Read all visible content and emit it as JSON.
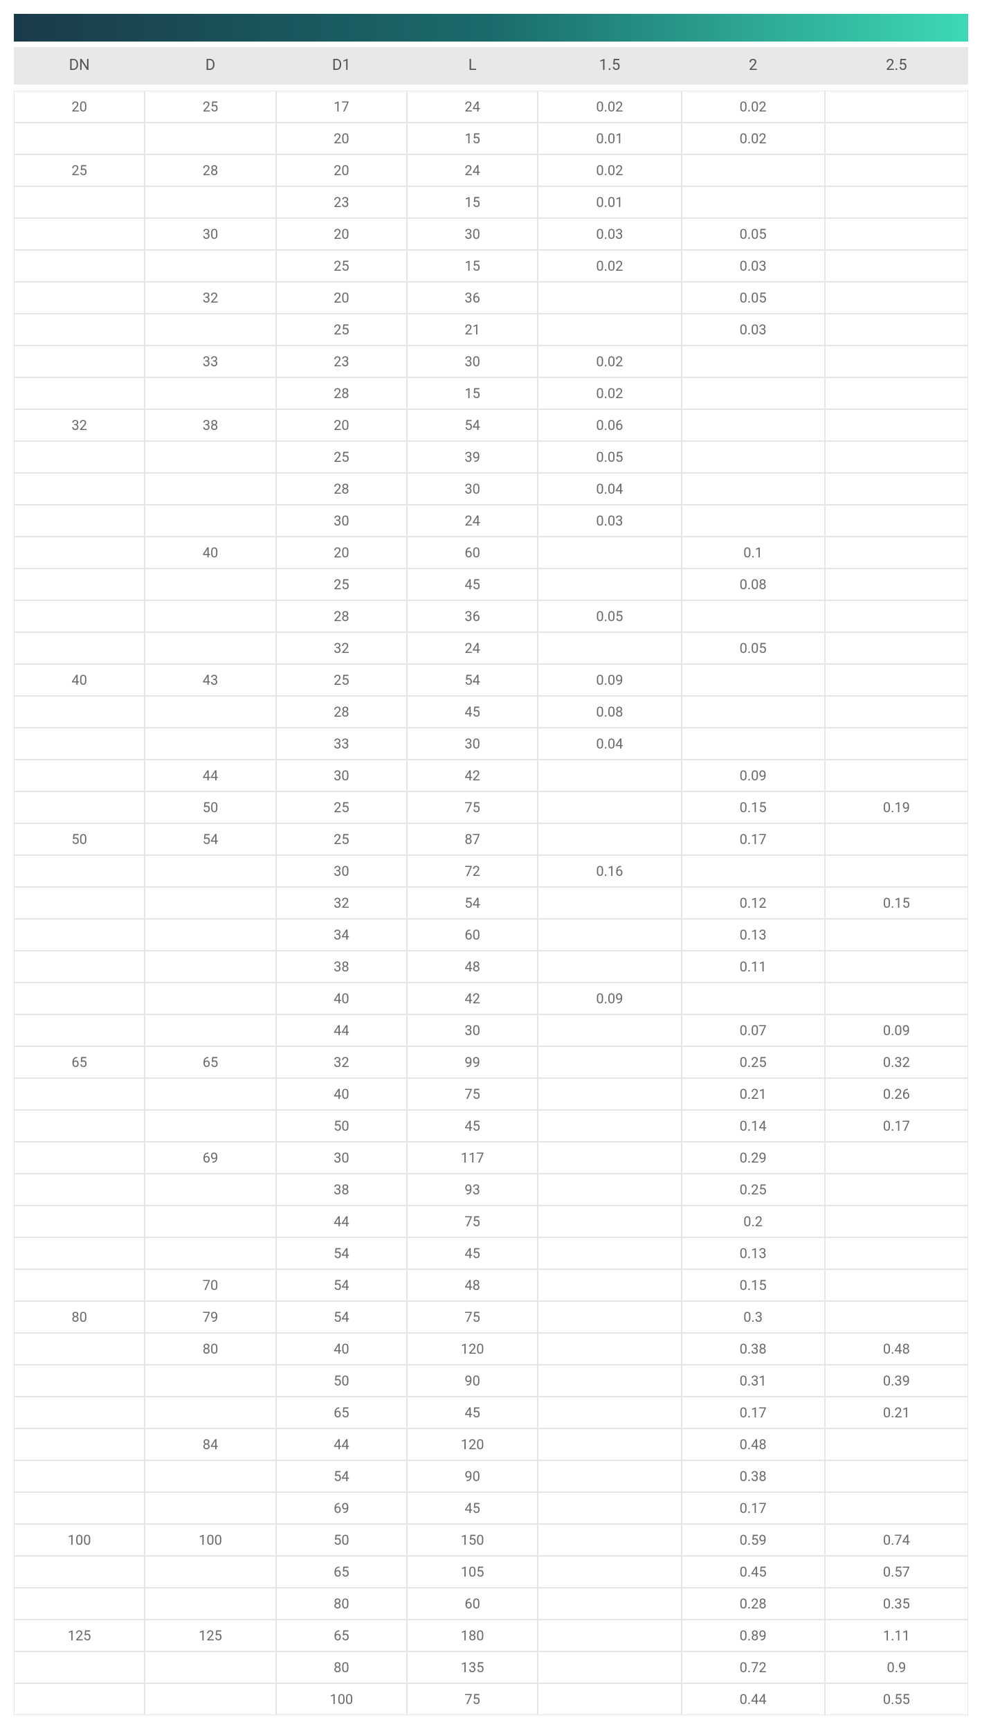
{
  "table": {
    "type": "table",
    "columns": [
      "DN",
      "D",
      "D1",
      "L",
      "1.5",
      "2",
      "2.5"
    ],
    "header_bg_color": "#e8e8e8",
    "header_text_color": "#555555",
    "cell_border_color": "#e5e5e5",
    "cell_text_color": "#6a6a6a",
    "header_fontsize": 22,
    "cell_fontsize": 20,
    "gradient_colors": [
      "#1a3a4a",
      "#1a6b6b",
      "#3dd9b5"
    ],
    "rows": [
      [
        "20",
        "25",
        "17",
        "24",
        "0.02",
        "0.02",
        ""
      ],
      [
        "",
        "",
        "20",
        "15",
        "0.01",
        "0.02",
        ""
      ],
      [
        "25",
        "28",
        "20",
        "24",
        "0.02",
        "",
        ""
      ],
      [
        "",
        "",
        "23",
        "15",
        "0.01",
        "",
        ""
      ],
      [
        "",
        "30",
        "20",
        "30",
        "0.03",
        "0.05",
        ""
      ],
      [
        "",
        "",
        "25",
        "15",
        "0.02",
        "0.03",
        ""
      ],
      [
        "",
        "32",
        "20",
        "36",
        "",
        "0.05",
        ""
      ],
      [
        "",
        "",
        "25",
        "21",
        "",
        "0.03",
        ""
      ],
      [
        "",
        "33",
        "23",
        "30",
        "0.02",
        "",
        ""
      ],
      [
        "",
        "",
        "28",
        "15",
        "0.02",
        "",
        ""
      ],
      [
        "32",
        "38",
        "20",
        "54",
        "0.06",
        "",
        ""
      ],
      [
        "",
        "",
        "25",
        "39",
        "0.05",
        "",
        ""
      ],
      [
        "",
        "",
        "28",
        "30",
        "0.04",
        "",
        ""
      ],
      [
        "",
        "",
        "30",
        "24",
        "0.03",
        "",
        ""
      ],
      [
        "",
        "40",
        "20",
        "60",
        "",
        "0.1",
        ""
      ],
      [
        "",
        "",
        "25",
        "45",
        "",
        "0.08",
        ""
      ],
      [
        "",
        "",
        "28",
        "36",
        "0.05",
        "",
        ""
      ],
      [
        "",
        "",
        "32",
        "24",
        "",
        "0.05",
        ""
      ],
      [
        "40",
        "43",
        "25",
        "54",
        "0.09",
        "",
        ""
      ],
      [
        "",
        "",
        "28",
        "45",
        "0.08",
        "",
        ""
      ],
      [
        "",
        "",
        "33",
        "30",
        "0.04",
        "",
        ""
      ],
      [
        "",
        "44",
        "30",
        "42",
        "",
        "0.09",
        ""
      ],
      [
        "",
        "50",
        "25",
        "75",
        "",
        "0.15",
        "0.19"
      ],
      [
        "50",
        "54",
        "25",
        "87",
        "",
        "0.17",
        ""
      ],
      [
        "",
        "",
        "30",
        "72",
        "0.16",
        "",
        ""
      ],
      [
        "",
        "",
        "32",
        "54",
        "",
        "0.12",
        "0.15"
      ],
      [
        "",
        "",
        "34",
        "60",
        "",
        "0.13",
        ""
      ],
      [
        "",
        "",
        "38",
        "48",
        "",
        "0.11",
        ""
      ],
      [
        "",
        "",
        "40",
        "42",
        "0.09",
        "",
        ""
      ],
      [
        "",
        "",
        "44",
        "30",
        "",
        "0.07",
        "0.09"
      ],
      [
        "65",
        "65",
        "32",
        "99",
        "",
        "0.25",
        "0.32"
      ],
      [
        "",
        "",
        "40",
        "75",
        "",
        "0.21",
        "0.26"
      ],
      [
        "",
        "",
        "50",
        "45",
        "",
        "0.14",
        "0.17"
      ],
      [
        "",
        "69",
        "30",
        "117",
        "",
        "0.29",
        ""
      ],
      [
        "",
        "",
        "38",
        "93",
        "",
        "0.25",
        ""
      ],
      [
        "",
        "",
        "44",
        "75",
        "",
        "0.2",
        ""
      ],
      [
        "",
        "",
        "54",
        "45",
        "",
        "0.13",
        ""
      ],
      [
        "",
        "70",
        "54",
        "48",
        "",
        "0.15",
        ""
      ],
      [
        "80",
        "79",
        "54",
        "75",
        "",
        "0.3",
        ""
      ],
      [
        "",
        "80",
        "40",
        "120",
        "",
        "0.38",
        "0.48"
      ],
      [
        "",
        "",
        "50",
        "90",
        "",
        "0.31",
        "0.39"
      ],
      [
        "",
        "",
        "65",
        "45",
        "",
        "0.17",
        "0.21"
      ],
      [
        "",
        "84",
        "44",
        "120",
        "",
        "0.48",
        ""
      ],
      [
        "",
        "",
        "54",
        "90",
        "",
        "0.38",
        ""
      ],
      [
        "",
        "",
        "69",
        "45",
        "",
        "0.17",
        ""
      ],
      [
        "100",
        "100",
        "50",
        "150",
        "",
        "0.59",
        "0.74"
      ],
      [
        "",
        "",
        "65",
        "105",
        "",
        "0.45",
        "0.57"
      ],
      [
        "",
        "",
        "80",
        "60",
        "",
        "0.28",
        "0.35"
      ],
      [
        "125",
        "125",
        "65",
        "180",
        "",
        "0.89",
        "1.11"
      ],
      [
        "",
        "",
        "80",
        "135",
        "",
        "0.72",
        "0.9"
      ],
      [
        "",
        "",
        "100",
        "75",
        "",
        "0.44",
        "0.55"
      ]
    ]
  }
}
